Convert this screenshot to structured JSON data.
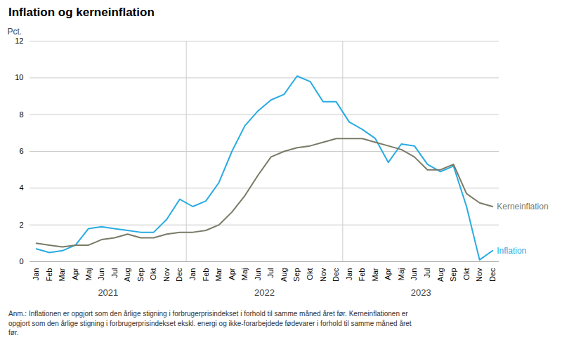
{
  "chart_data": {
    "type": "line",
    "title": "Inflation og kerneinflation",
    "ylabel": "Pct.",
    "annotation": "Anm.: Inflationen er opgjort som den årlige stigning i forbrugerprisindekset i forhold til samme måned året før. Kerneinflationen er\nopgjort som den årlige stigning i forbrugerprisindekset ekskl. energi og ikke-forarbejdede fødevarer i forhold til samme måned året\nfør.",
    "categories": [
      "Jan",
      "Feb",
      "Mar",
      "Apr",
      "Maj",
      "Jun",
      "Jul",
      "Aug",
      "Sep",
      "Okt",
      "Nov",
      "Dec",
      "Jan",
      "Feb",
      "Mar",
      "Apr",
      "Maj",
      "Jun",
      "Jul",
      "Aug",
      "Sep",
      "Okt",
      "Nov",
      "Dec",
      "Jan",
      "Feb",
      "Mar",
      "Apr",
      "Maj",
      "Jun",
      "Jul",
      "Aug",
      "Sep",
      "Okt",
      "Nov",
      "Dec"
    ],
    "year_labels": [
      "2021",
      "2022",
      "2023"
    ],
    "series": [
      {
        "name": "Inflation",
        "color": "#29ABE2",
        "values": [
          0.7,
          0.5,
          0.6,
          0.9,
          1.8,
          1.9,
          1.8,
          1.7,
          1.6,
          1.6,
          2.3,
          3.4,
          3.0,
          3.3,
          4.3,
          6.0,
          7.4,
          8.2,
          8.8,
          9.1,
          10.1,
          9.8,
          8.7,
          8.7,
          7.6,
          7.2,
          6.7,
          5.4,
          6.4,
          6.3,
          5.3,
          4.9,
          5.2,
          3.0,
          0.1,
          0.6
        ]
      },
      {
        "name": "Kerneinflation",
        "color": "#7a7a68",
        "values": [
          1.0,
          0.9,
          0.8,
          0.9,
          0.9,
          1.2,
          1.3,
          1.5,
          1.3,
          1.3,
          1.5,
          1.6,
          1.6,
          1.7,
          2.0,
          2.7,
          3.6,
          4.7,
          5.7,
          6.0,
          6.2,
          6.3,
          6.5,
          6.7,
          6.7,
          6.7,
          6.5,
          6.3,
          6.1,
          5.7,
          5.0,
          5.0,
          5.3,
          3.7,
          3.2,
          3.0
        ]
      }
    ],
    "ylim": [
      0,
      12
    ],
    "yticks": [
      0,
      2,
      4,
      6,
      8,
      10,
      12
    ],
    "grid": true
  }
}
